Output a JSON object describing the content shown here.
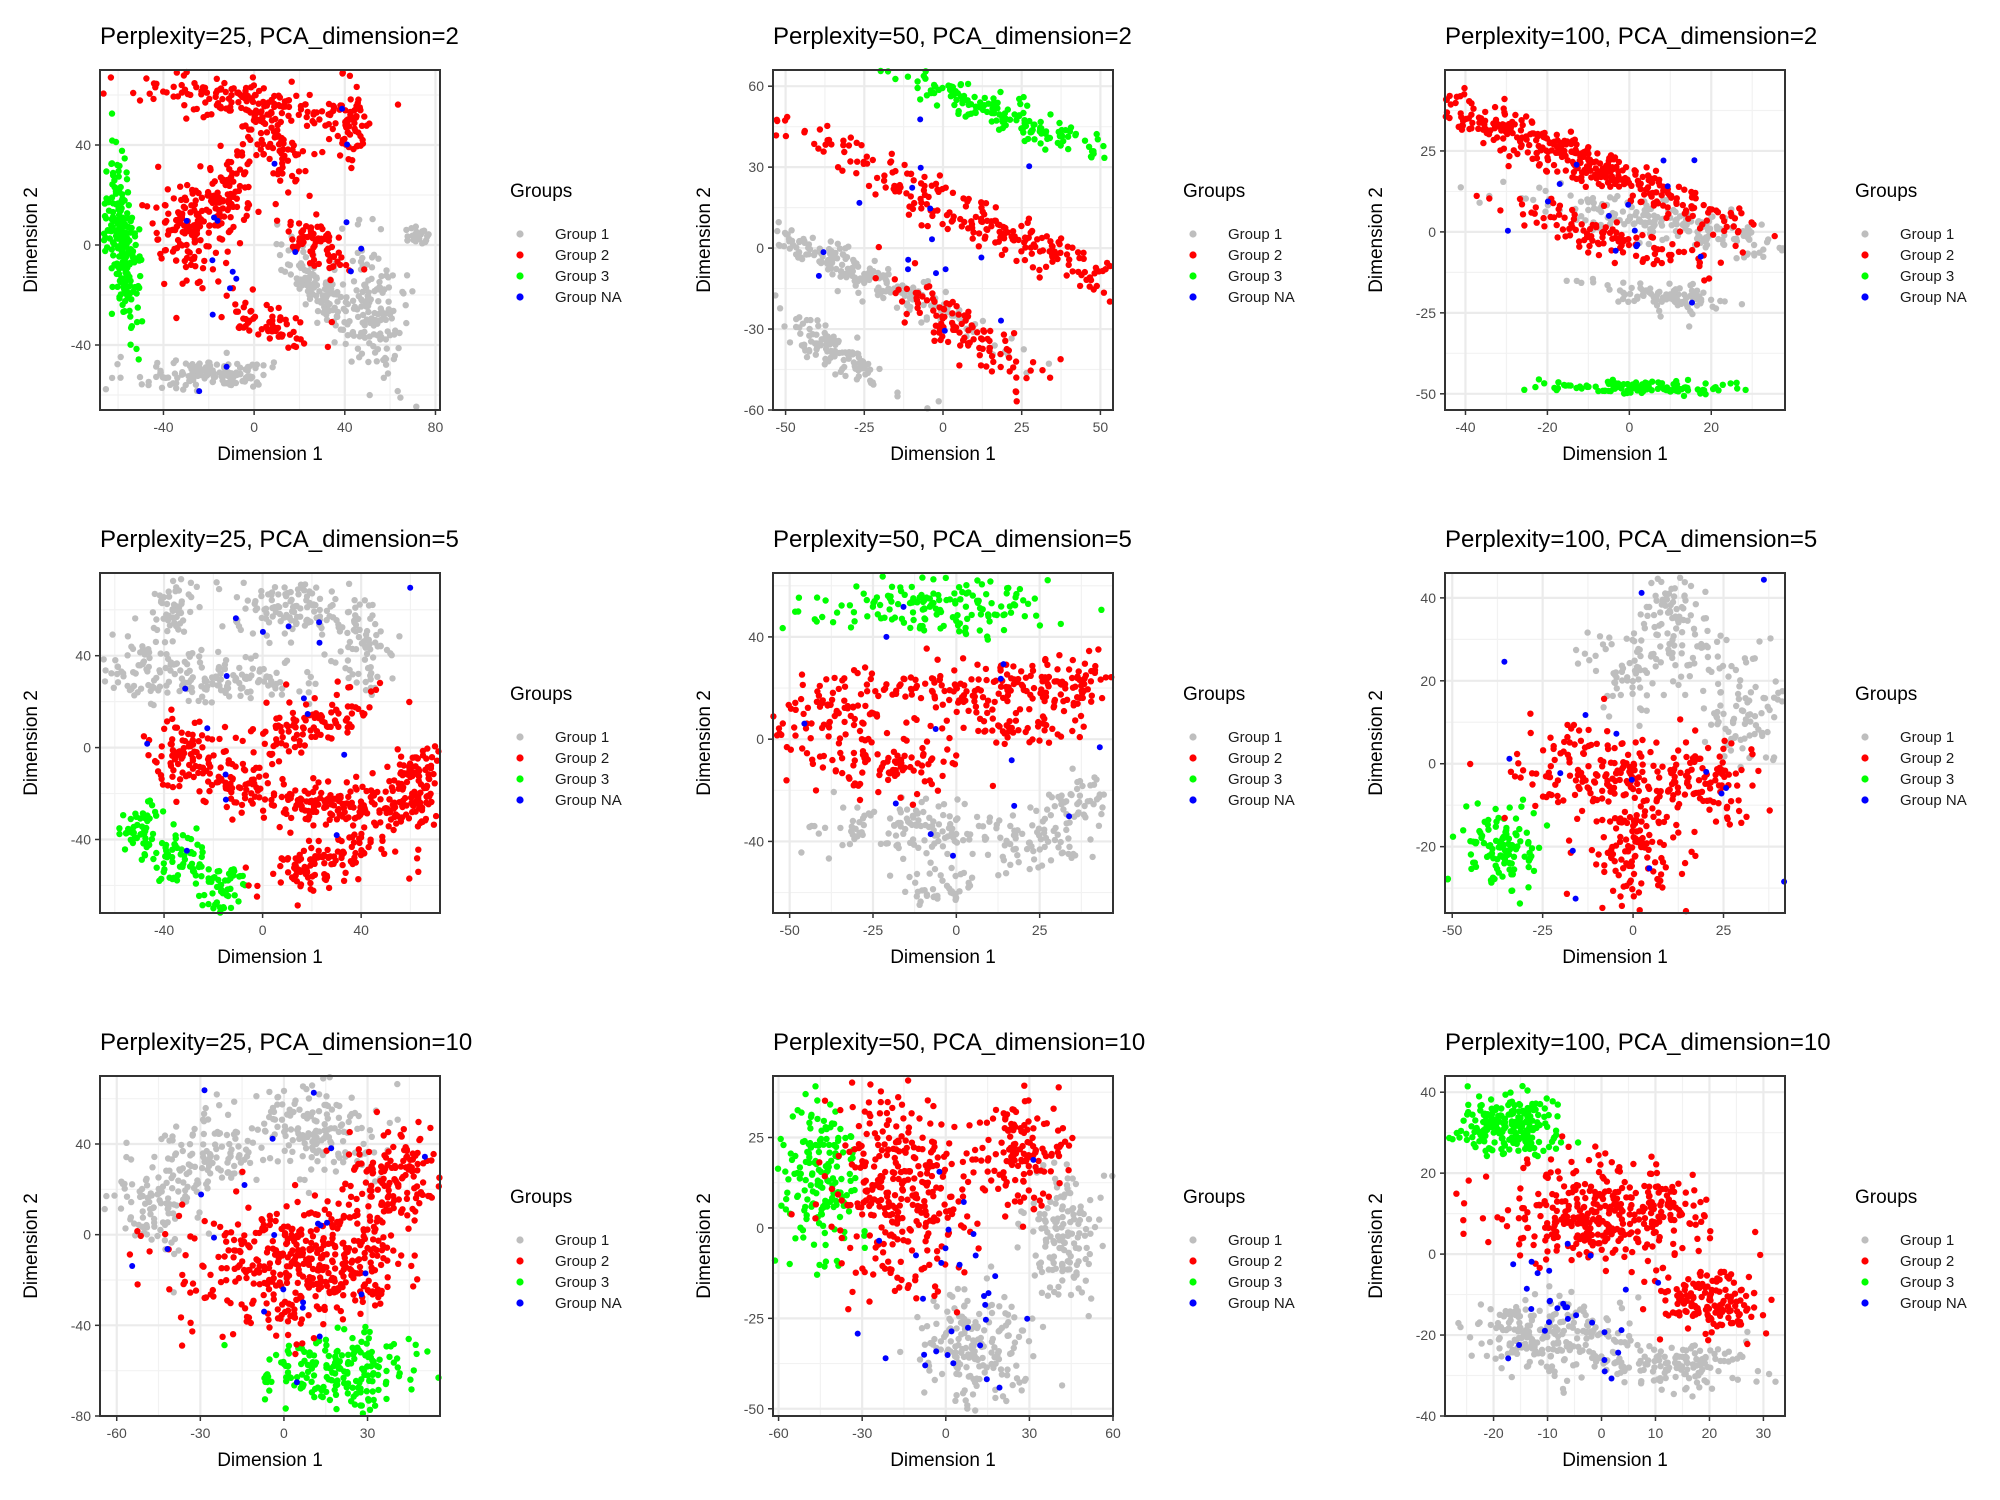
{
  "legend": {
    "title": "Groups",
    "entries": [
      {
        "label": "Group 1",
        "color": "#bebebe"
      },
      {
        "label": "Group 2",
        "color": "#ff0000"
      },
      {
        "label": "Group 3",
        "color": "#00ff00"
      },
      {
        "label": "Group NA",
        "color": "#0000ff"
      }
    ]
  },
  "chart_data": [
    {
      "type": "scatter",
      "title": "Perplexity=25, PCA_dimension=2",
      "xlabel": "Dimension 1",
      "ylabel": "Dimension 2",
      "xlim": [
        -68,
        82
      ],
      "ylim": [
        -66,
        70
      ],
      "xticks": [
        -40,
        0,
        40,
        80
      ],
      "yticks": [
        -40,
        0,
        40
      ],
      "clusters": [
        {
          "group": "Group 3",
          "x": -58,
          "y": 0,
          "sx": 3,
          "sy": 18,
          "rot": 5,
          "n": 220
        },
        {
          "group": "Group 2",
          "x": -5,
          "y": 58,
          "sx": 24,
          "sy": 4,
          "rot": -8,
          "n": 150
        },
        {
          "group": "Group 2",
          "x": 8,
          "y": 40,
          "sx": 6,
          "sy": 11,
          "rot": 40,
          "n": 80
        },
        {
          "group": "Group 2",
          "x": -28,
          "y": 6,
          "sx": 8,
          "sy": 11,
          "rot": 0,
          "n": 140
        },
        {
          "group": "Group 2",
          "x": -12,
          "y": 20,
          "sx": 6,
          "sy": 9,
          "rot": -20,
          "n": 80
        },
        {
          "group": "Group 2",
          "x": 42,
          "y": 48,
          "sx": 4,
          "sy": 9,
          "rot": 0,
          "n": 60
        },
        {
          "group": "Group 2",
          "x": 28,
          "y": 0,
          "sx": 8,
          "sy": 4,
          "rot": -40,
          "n": 70
        },
        {
          "group": "Group 2",
          "x": 5,
          "y": -30,
          "sx": 10,
          "sy": 4,
          "rot": -20,
          "n": 60
        },
        {
          "group": "Group 1",
          "x": 30,
          "y": -20,
          "sx": 14,
          "sy": 4,
          "rot": -50,
          "n": 150
        },
        {
          "group": "Group 1",
          "x": -22,
          "y": -52,
          "sx": 16,
          "sy": 3,
          "rot": 0,
          "n": 130
        },
        {
          "group": "Group 1",
          "x": 55,
          "y": -25,
          "sx": 6,
          "sy": 14,
          "rot": 10,
          "n": 120
        },
        {
          "group": "Group 1",
          "x": 72,
          "y": 4,
          "sx": 3,
          "sy": 2,
          "rot": 0,
          "n": 25
        },
        {
          "group": "Group NA",
          "x": 0,
          "y": 0,
          "sx": 35,
          "sy": 35,
          "rot": 0,
          "n": 18
        }
      ]
    },
    {
      "type": "scatter",
      "title": "Perplexity=50, PCA_dimension=2",
      "xlabel": "Dimension 1",
      "ylabel": "Dimension 2",
      "xlim": [
        -54,
        54
      ],
      "ylim": [
        -60,
        66
      ],
      "xticks": [
        -50,
        -25,
        0,
        25,
        50
      ],
      "yticks": [
        -60,
        -30,
        0,
        30,
        60
      ],
      "clusters": [
        {
          "group": "Group 3",
          "x": 18,
          "y": 50,
          "sx": 26,
          "sy": 3,
          "rot": -25,
          "n": 180
        },
        {
          "group": "Group 2",
          "x": 12,
          "y": 10,
          "sx": 40,
          "sy": 4,
          "rot": -30,
          "n": 260
        },
        {
          "group": "Group 2",
          "x": 5,
          "y": -30,
          "sx": 16,
          "sy": 4,
          "rot": -40,
          "n": 110
        },
        {
          "group": "Group 1",
          "x": -25,
          "y": -10,
          "sx": 26,
          "sy": 3,
          "rot": -30,
          "n": 200
        },
        {
          "group": "Group 1",
          "x": -35,
          "y": -38,
          "sx": 12,
          "sy": 3,
          "rot": -40,
          "n": 110
        },
        {
          "group": "Group NA",
          "x": 0,
          "y": 0,
          "sx": 30,
          "sy": 30,
          "rot": 0,
          "n": 18
        }
      ]
    },
    {
      "type": "scatter",
      "title": "Perplexity=100, PCA_dimension=2",
      "xlabel": "Dimension 1",
      "ylabel": "Dimension 2",
      "xlim": [
        -45,
        38
      ],
      "ylim": [
        -55,
        50
      ],
      "xticks": [
        -40,
        -20,
        0,
        20
      ],
      "yticks": [
        -50,
        -25,
        0,
        25
      ],
      "clusters": [
        {
          "group": "Group 2",
          "x": -12,
          "y": 22,
          "sx": 24,
          "sy": 3,
          "rot": -28,
          "n": 380
        },
        {
          "group": "Group 2",
          "x": -5,
          "y": -2,
          "sx": 12,
          "sy": 3,
          "rot": -20,
          "n": 110
        },
        {
          "group": "Group 1",
          "x": 12,
          "y": 2,
          "sx": 18,
          "sy": 3,
          "rot": -15,
          "n": 200
        },
        {
          "group": "Group 1",
          "x": 8,
          "y": -20,
          "sx": 10,
          "sy": 2,
          "rot": -10,
          "n": 90
        },
        {
          "group": "Group 3",
          "x": 4,
          "y": -48,
          "sx": 12,
          "sy": 1,
          "rot": 0,
          "n": 120
        },
        {
          "group": "Group NA",
          "x": 0,
          "y": 10,
          "sx": 24,
          "sy": 20,
          "rot": 0,
          "n": 16
        }
      ]
    },
    {
      "type": "scatter",
      "title": "Perplexity=25, PCA_dimension=5",
      "xlabel": "Dimension 1",
      "ylabel": "Dimension 2",
      "xlim": [
        -66,
        72
      ],
      "ylim": [
        -72,
        76
      ],
      "xticks": [
        -40,
        0,
        40
      ],
      "yticks": [
        -40,
        0,
        40
      ],
      "clusters": [
        {
          "group": "Group 1",
          "x": -45,
          "y": 35,
          "sx": 10,
          "sy": 8,
          "rot": 0,
          "n": 90
        },
        {
          "group": "Group 1",
          "x": -35,
          "y": 60,
          "sx": 4,
          "sy": 6,
          "rot": 0,
          "n": 50
        },
        {
          "group": "Group 1",
          "x": 10,
          "y": 60,
          "sx": 14,
          "sy": 6,
          "rot": 0,
          "n": 120
        },
        {
          "group": "Group 1",
          "x": 40,
          "y": 45,
          "sx": 6,
          "sy": 10,
          "rot": 0,
          "n": 70
        },
        {
          "group": "Group 1",
          "x": -10,
          "y": 30,
          "sx": 14,
          "sy": 6,
          "rot": 0,
          "n": 100
        },
        {
          "group": "Group 2",
          "x": 25,
          "y": -25,
          "sx": 18,
          "sy": 5,
          "rot": 0,
          "n": 150
        },
        {
          "group": "Group 2",
          "x": 25,
          "y": -50,
          "sx": 14,
          "sy": 5,
          "rot": 15,
          "n": 120
        },
        {
          "group": "Group 2",
          "x": 60,
          "y": -25,
          "sx": 8,
          "sy": 5,
          "rot": 25,
          "n": 80
        },
        {
          "group": "Group 2",
          "x": 60,
          "y": -10,
          "sx": 8,
          "sy": 4,
          "rot": 25,
          "n": 60
        },
        {
          "group": "Group 2",
          "x": -30,
          "y": -5,
          "sx": 8,
          "sy": 8,
          "rot": 0,
          "n": 90
        },
        {
          "group": "Group 2",
          "x": 20,
          "y": 10,
          "sx": 16,
          "sy": 5,
          "rot": 20,
          "n": 110
        },
        {
          "group": "Group 2",
          "x": -10,
          "y": -15,
          "sx": 6,
          "sy": 6,
          "rot": 0,
          "n": 50
        },
        {
          "group": "Group 3",
          "x": -50,
          "y": -35,
          "sx": 5,
          "sy": 6,
          "rot": 0,
          "n": 50
        },
        {
          "group": "Group 3",
          "x": -35,
          "y": -48,
          "sx": 6,
          "sy": 6,
          "rot": 0,
          "n": 60
        },
        {
          "group": "Group 3",
          "x": -18,
          "y": -60,
          "sx": 5,
          "sy": 6,
          "rot": 0,
          "n": 50
        },
        {
          "group": "Group NA",
          "x": 0,
          "y": 10,
          "sx": 40,
          "sy": 40,
          "rot": 0,
          "n": 18
        }
      ]
    },
    {
      "type": "scatter",
      "title": "Perplexity=50, PCA_dimension=5",
      "xlabel": "Dimension 1",
      "ylabel": "Dimension 2",
      "xlim": [
        -55,
        47
      ],
      "ylim": [
        -68,
        65
      ],
      "xticks": [
        -50,
        -25,
        0,
        25
      ],
      "yticks": [
        -40,
        0,
        40
      ],
      "clusters": [
        {
          "group": "Group 3",
          "x": -5,
          "y": 52,
          "sx": 18,
          "sy": 5,
          "rot": 0,
          "n": 150
        },
        {
          "group": "Group 2",
          "x": 5,
          "y": 20,
          "sx": 16,
          "sy": 6,
          "rot": 0,
          "n": 150
        },
        {
          "group": "Group 2",
          "x": 35,
          "y": 22,
          "sx": 7,
          "sy": 5,
          "rot": 0,
          "n": 60
        },
        {
          "group": "Group 2",
          "x": -40,
          "y": 10,
          "sx": 8,
          "sy": 7,
          "rot": 0,
          "n": 70
        },
        {
          "group": "Group 2",
          "x": -20,
          "y": -10,
          "sx": 12,
          "sy": 6,
          "rot": 0,
          "n": 100
        },
        {
          "group": "Group 2",
          "x": 20,
          "y": 3,
          "sx": 8,
          "sy": 3,
          "rot": 0,
          "n": 40
        },
        {
          "group": "Group 1",
          "x": -15,
          "y": -35,
          "sx": 14,
          "sy": 6,
          "rot": 0,
          "n": 120
        },
        {
          "group": "Group 1",
          "x": 25,
          "y": -40,
          "sx": 10,
          "sy": 7,
          "rot": 0,
          "n": 80
        },
        {
          "group": "Group 1",
          "x": 37,
          "y": -25,
          "sx": 4,
          "sy": 5,
          "rot": 0,
          "n": 40
        },
        {
          "group": "Group 1",
          "x": -5,
          "y": -58,
          "sx": 6,
          "sy": 4,
          "rot": 0,
          "n": 40
        },
        {
          "group": "Group NA",
          "x": 0,
          "y": -10,
          "sx": 30,
          "sy": 35,
          "rot": 0,
          "n": 18
        }
      ]
    },
    {
      "type": "scatter",
      "title": "Perplexity=100, PCA_dimension=5",
      "xlabel": "Dimension 1",
      "ylabel": "Dimension 2",
      "xlim": [
        -52,
        42
      ],
      "ylim": [
        -36,
        46
      ],
      "xticks": [
        -50,
        -25,
        0,
        25
      ],
      "yticks": [
        -20,
        0,
        20,
        40
      ],
      "clusters": [
        {
          "group": "Group 1",
          "x": 10,
          "y": 38,
          "sx": 4,
          "sy": 4,
          "rot": 0,
          "n": 50
        },
        {
          "group": "Group 1",
          "x": 15,
          "y": 28,
          "sx": 7,
          "sy": 5,
          "rot": 0,
          "n": 60
        },
        {
          "group": "Group 1",
          "x": -3,
          "y": 22,
          "sx": 6,
          "sy": 5,
          "rot": 0,
          "n": 60
        },
        {
          "group": "Group 1",
          "x": 32,
          "y": 12,
          "sx": 7,
          "sy": 7,
          "rot": 0,
          "n": 90
        },
        {
          "group": "Group 2",
          "x": -15,
          "y": 0,
          "sx": 10,
          "sy": 6,
          "rot": 0,
          "n": 100
        },
        {
          "group": "Group 2",
          "x": 0,
          "y": -20,
          "sx": 6,
          "sy": 7,
          "rot": 0,
          "n": 120
        },
        {
          "group": "Group 2",
          "x": 20,
          "y": -5,
          "sx": 7,
          "sy": 5,
          "rot": 0,
          "n": 100
        },
        {
          "group": "Group 2",
          "x": 0,
          "y": -3,
          "sx": 6,
          "sy": 4,
          "rot": 0,
          "n": 60
        },
        {
          "group": "Group 3",
          "x": -38,
          "y": -20,
          "sx": 6,
          "sy": 5,
          "rot": 0,
          "n": 110
        },
        {
          "group": "Group NA",
          "x": 0,
          "y": 5,
          "sx": 25,
          "sy": 20,
          "rot": 0,
          "n": 16
        }
      ]
    },
    {
      "type": "scatter",
      "title": "Perplexity=25, PCA_dimension=10",
      "xlabel": "Dimension 1",
      "ylabel": "Dimension 2",
      "xlim": [
        -66,
        56
      ],
      "ylim": [
        -80,
        70
      ],
      "xticks": [
        -60,
        -30,
        0,
        30
      ],
      "yticks": [
        -80,
        -40,
        0,
        40
      ],
      "clusters": [
        {
          "group": "Group 1",
          "x": 12,
          "y": 47,
          "sx": 12,
          "sy": 10,
          "rot": 0,
          "n": 160
        },
        {
          "group": "Group 1",
          "x": -25,
          "y": 37,
          "sx": 9,
          "sy": 9,
          "rot": 0,
          "n": 90
        },
        {
          "group": "Group 1",
          "x": -45,
          "y": 15,
          "sx": 9,
          "sy": 11,
          "rot": 0,
          "n": 110
        },
        {
          "group": "Group 2",
          "x": 38,
          "y": 26,
          "sx": 9,
          "sy": 10,
          "rot": 0,
          "n": 130
        },
        {
          "group": "Group 2",
          "x": 0,
          "y": -15,
          "sx": 20,
          "sy": 16,
          "rot": 0,
          "n": 350
        },
        {
          "group": "Group 2",
          "x": 25,
          "y": -10,
          "sx": 10,
          "sy": 12,
          "rot": 0,
          "n": 100
        },
        {
          "group": "Group 3",
          "x": 20,
          "y": -60,
          "sx": 14,
          "sy": 8,
          "rot": 0,
          "n": 190
        },
        {
          "group": "Group NA",
          "x": -10,
          "y": 5,
          "sx": 30,
          "sy": 30,
          "rot": 0,
          "n": 22
        }
      ]
    },
    {
      "type": "scatter",
      "title": "Perplexity=50, PCA_dimension=10",
      "xlabel": "Dimension 1",
      "ylabel": "Dimension 2",
      "xlim": [
        -62,
        60
      ],
      "ylim": [
        -52,
        42
      ],
      "xticks": [
        -60,
        -30,
        0,
        30,
        60
      ],
      "yticks": [
        -50,
        -25,
        0,
        25
      ],
      "clusters": [
        {
          "group": "Group 3",
          "x": -45,
          "y": 15,
          "sx": 7,
          "sy": 11,
          "rot": 0,
          "n": 170
        },
        {
          "group": "Group 2",
          "x": -15,
          "y": 10,
          "sx": 13,
          "sy": 13,
          "rot": 0,
          "n": 330
        },
        {
          "group": "Group 2",
          "x": 28,
          "y": 20,
          "sx": 7,
          "sy": 8,
          "rot": 0,
          "n": 130
        },
        {
          "group": "Group 1",
          "x": 42,
          "y": -2,
          "sx": 6,
          "sy": 10,
          "rot": 0,
          "n": 140
        },
        {
          "group": "Group 1",
          "x": 10,
          "y": -32,
          "sx": 10,
          "sy": 8,
          "rot": 0,
          "n": 180
        },
        {
          "group": "Group NA",
          "x": 5,
          "y": -20,
          "sx": 15,
          "sy": 15,
          "rot": 0,
          "n": 30
        }
      ]
    },
    {
      "type": "scatter",
      "title": "Perplexity=100, PCA_dimension=10",
      "xlabel": "Dimension 1",
      "ylabel": "Dimension 2",
      "xlim": [
        -29,
        34
      ],
      "ylim": [
        -40,
        44
      ],
      "xticks": [
        -20,
        -10,
        0,
        10,
        20,
        30
      ],
      "yticks": [
        -40,
        -20,
        0,
        20,
        40
      ],
      "clusters": [
        {
          "group": "Group 3",
          "x": -17,
          "y": 32,
          "sx": 5,
          "sy": 4,
          "rot": 0,
          "n": 200
        },
        {
          "group": "Group 2",
          "x": 0,
          "y": 10,
          "sx": 10,
          "sy": 6,
          "rot": 0,
          "n": 350
        },
        {
          "group": "Group 2",
          "x": 20,
          "y": -12,
          "sx": 5,
          "sy": 4,
          "rot": 0,
          "n": 150
        },
        {
          "group": "Group 1",
          "x": -10,
          "y": -20,
          "sx": 7,
          "sy": 5,
          "rot": 0,
          "n": 230
        },
        {
          "group": "Group 1",
          "x": 15,
          "y": -28,
          "sx": 6,
          "sy": 3,
          "rot": 0,
          "n": 130
        },
        {
          "group": "Group NA",
          "x": -8,
          "y": -15,
          "sx": 8,
          "sy": 10,
          "rot": 0,
          "n": 30
        }
      ]
    }
  ]
}
